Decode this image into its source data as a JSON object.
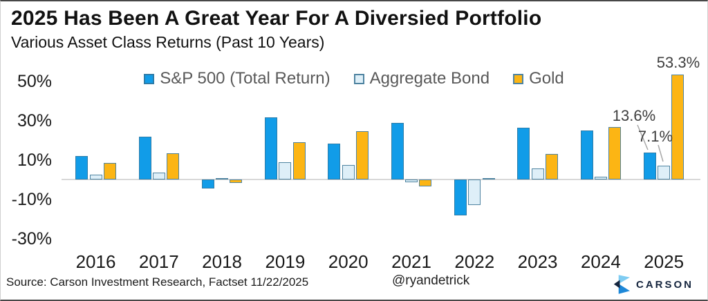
{
  "header": {
    "title": "2025 Has Been A Great Year For A Diversied Portfolio",
    "subtitle": "Various Asset Class Returns (Past 10 Years)"
  },
  "chart_data": {
    "type": "bar",
    "title": "2025 Has Been A Great Year For A Diversied Portfolio",
    "subtitle": "Various Asset Class Returns (Past 10 Years)",
    "categories": [
      "2016",
      "2017",
      "2018",
      "2019",
      "2020",
      "2021",
      "2022",
      "2023",
      "2024",
      "2025"
    ],
    "series": [
      {
        "name": "S&P 500 (Total Return)",
        "color": "#119CE8",
        "border": "#2E7CA8",
        "values": [
          12.0,
          21.8,
          -4.4,
          31.5,
          18.4,
          28.7,
          -18.1,
          26.3,
          25.0,
          13.6
        ]
      },
      {
        "name": "Aggregate Bond",
        "color": "#DEEFF8",
        "border": "#4E83A0",
        "values": [
          2.6,
          3.5,
          0.0,
          8.7,
          7.5,
          -1.5,
          -13.0,
          5.5,
          1.3,
          7.1
        ]
      },
      {
        "name": "Gold",
        "color": "#FCB514",
        "border": "#4E83A0",
        "values": [
          8.5,
          13.5,
          -1.6,
          19.0,
          24.6,
          -3.6,
          0.4,
          13.1,
          26.7,
          53.3
        ]
      }
    ],
    "yticks": [
      {
        "label": "50%",
        "value": 50
      },
      {
        "label": "30%",
        "value": 30
      },
      {
        "label": "10%",
        "value": 10
      },
      {
        "label": "-10%",
        "value": -10
      },
      {
        "label": "-30%",
        "value": -30
      }
    ],
    "ylim": [
      -35,
      58
    ],
    "grid": "zero-line-only",
    "legend_position": "top",
    "annotations": [
      {
        "text": "53.3%",
        "series": "Gold",
        "category": "2025"
      },
      {
        "text": "13.6%",
        "series": "S&P 500 (Total Return)",
        "category": "2025"
      },
      {
        "text": "7.1%",
        "series": "Aggregate Bond",
        "category": "2025"
      }
    ]
  },
  "footer": {
    "source": "Source: Carson Investment Research, Factset 11/22/2025",
    "handle": "@ryandetrick",
    "brand": "CARSON"
  },
  "colors": {
    "sp500": "#119CE8",
    "bond_fill": "#DEEFF8",
    "gold": "#FCB514",
    "bar_border": "#4E83A0",
    "navy": "#15253E",
    "logo_light_blue": "#7FCCF2",
    "logo_mid_blue": "#1E88D8"
  }
}
